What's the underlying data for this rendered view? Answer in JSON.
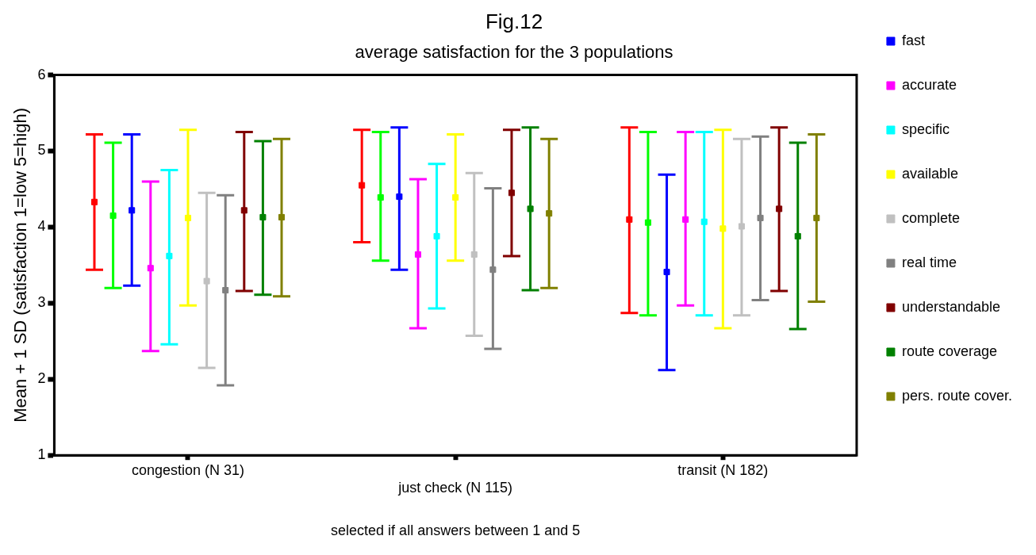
{
  "chart_data": {
    "type": "scatter",
    "title": "Fig.12",
    "subtitle": "average satisfaction for the 3 populations",
    "xlabel": "selected if all answers between 1 and 5",
    "ylabel": "Mean + 1 SD (satisfaction 1=low 5=high)",
    "categories": [
      "congestion (N 31)",
      "just check (N 115)",
      "transit (N 182)"
    ],
    "ylim": [
      1,
      6
    ],
    "yticks": [
      1,
      2,
      3,
      4,
      5,
      6
    ],
    "grid": false,
    "legend": "right",
    "marker": "square",
    "series": [
      {
        "color": "#ff0000",
        "values": [
          4.33,
          4.55,
          4.1
        ],
        "errors": [
          [
            3.44,
            5.22
          ],
          [
            3.8,
            5.28
          ],
          [
            2.87,
            5.31
          ]
        ]
      },
      {
        "color": "#00ff00",
        "values": [
          4.15,
          4.39,
          4.06
        ],
        "errors": [
          [
            3.2,
            5.11
          ],
          [
            3.56,
            5.25
          ],
          [
            2.84,
            5.25
          ]
        ]
      },
      {
        "name": "fast",
        "color": "#0000ff",
        "values": [
          4.22,
          4.4,
          3.41
        ],
        "errors": [
          [
            3.23,
            5.22
          ],
          [
            3.44,
            5.31
          ],
          [
            2.12,
            4.69
          ]
        ]
      },
      {
        "name": "accurate",
        "color": "#ff00ff",
        "values": [
          3.46,
          3.64,
          4.1
        ],
        "errors": [
          [
            2.37,
            4.6
          ],
          [
            2.67,
            4.63
          ],
          [
            2.97,
            5.25
          ]
        ]
      },
      {
        "name": "specific",
        "color": "#00ffff",
        "values": [
          3.62,
          3.88,
          4.07
        ],
        "errors": [
          [
            2.46,
            4.75
          ],
          [
            2.93,
            4.83
          ],
          [
            2.84,
            5.25
          ]
        ]
      },
      {
        "name": "available",
        "color": "#ffff00",
        "values": [
          4.12,
          4.39,
          3.98
        ],
        "errors": [
          [
            2.97,
            5.28
          ],
          [
            3.56,
            5.22
          ],
          [
            2.67,
            5.28
          ]
        ]
      },
      {
        "name": "complete",
        "color": "#c0c0c0",
        "values": [
          3.29,
          3.64,
          4.01
        ],
        "errors": [
          [
            2.15,
            4.45
          ],
          [
            2.57,
            4.71
          ],
          [
            2.84,
            5.16
          ]
        ]
      },
      {
        "name": "real time",
        "color": "#808080",
        "values": [
          3.17,
          3.44,
          4.12
        ],
        "errors": [
          [
            1.92,
            4.42
          ],
          [
            2.4,
            4.51
          ],
          [
            3.04,
            5.19
          ]
        ]
      },
      {
        "name": "understandable",
        "color": "#800000",
        "values": [
          4.22,
          4.45,
          4.24
        ],
        "errors": [
          [
            3.16,
            5.25
          ],
          [
            3.62,
            5.28
          ],
          [
            3.16,
            5.31
          ]
        ]
      },
      {
        "name": "route coverage",
        "color": "#008000",
        "values": [
          4.13,
          4.24,
          3.88
        ],
        "errors": [
          [
            3.11,
            5.13
          ],
          [
            3.17,
            5.31
          ],
          [
            2.66,
            5.11
          ]
        ]
      },
      {
        "name": "pers. route cover.",
        "color": "#808000",
        "values": [
          4.13,
          4.18,
          4.12
        ],
        "errors": [
          [
            3.09,
            5.16
          ],
          [
            3.2,
            5.16
          ],
          [
            3.02,
            5.22
          ]
        ]
      }
    ]
  }
}
